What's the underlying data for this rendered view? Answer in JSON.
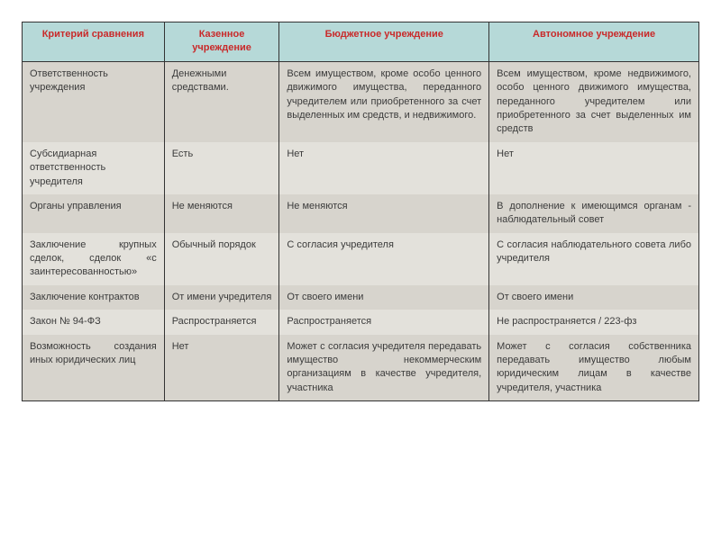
{
  "table": {
    "columns": [
      {
        "label": "Критерий сравнения",
        "width": "21%"
      },
      {
        "label": "Казенное учреждение",
        "width": "17%"
      },
      {
        "label": "Бюджетное учреждение",
        "width": "31%"
      },
      {
        "label": "Автономное учреждение",
        "width": "31%"
      }
    ],
    "header_bg": "#b6d9d8",
    "header_color": "#c92a2a",
    "row_bg_a": "#d7d4cd",
    "row_bg_b": "#e3e1db",
    "text_color": "#3b3b3b",
    "border_color": "#333333",
    "font_size_pt": 8,
    "rows": [
      {
        "c0": "Ответственность учреждения",
        "c1": "Денежными средствами.",
        "c2": "Всем имуществом, кроме особо ценного движимого имущества, переданного учредителем или приобретенного за счет выделенных им средств, и недвижимого.",
        "c3": "Всем имуществом, кроме недвижимого, особо ценного движимого имущества, переданного учредителем или приобретенного за счет выделенных им средств"
      },
      {
        "c0": "Субсидиарная ответственность учредителя",
        "c1": "Есть",
        "c2": "Нет",
        "c3": "Нет"
      },
      {
        "c0": "Органы управления",
        "c1": "Не меняются",
        "c2": "Не меняются",
        "c3": "В дополнение к имеющимся органам - наблюдательный совет"
      },
      {
        "c0": "Заключение крупных сделок, сделок «с заинтересованностью»",
        "c1": "Обычный порядок",
        "c2": "С согласия учредителя",
        "c3": "С согласия наблюдательного совета либо учредителя"
      },
      {
        "c0": "Заключение контрактов",
        "c1": "От имени учредителя",
        "c2": "От своего имени",
        "c3": "От своего имени"
      },
      {
        "c0": "Закон № 94-ФЗ",
        "c1": "Распространяется",
        "c2": "Распространяется",
        "c3": "Не распространяется / 223-фз"
      },
      {
        "c0": "Возможность создания иных юридических лиц",
        "c1": "Нет",
        "c2": "Может с согласия учредителя передавать имущество некоммерческим организациям в качестве учредителя, участника",
        "c3": "Может с согласия собственника передавать имущество любым юридическим лицам в качестве учредителя, участника"
      }
    ]
  }
}
